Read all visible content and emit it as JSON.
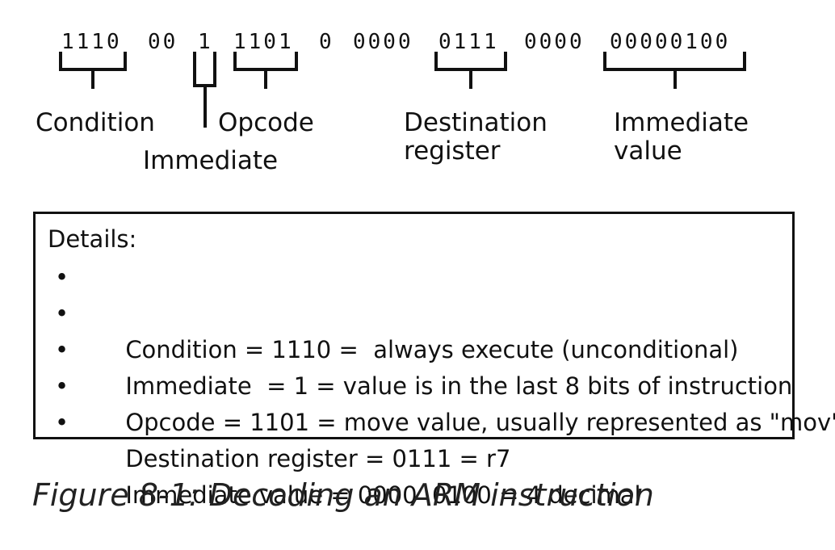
{
  "diagram": {
    "bit_groups": [
      "1110",
      "00",
      "1",
      "1101",
      "0",
      "0000",
      "0111",
      "0000",
      "00000100"
    ],
    "field_labels": {
      "condition": "Condition",
      "immediate": "Immediate",
      "opcode": "Opcode",
      "destination": "Destination\nregister",
      "immediate_value": "Immediate\nvalue"
    }
  },
  "details": {
    "heading": "Details:",
    "items": [
      "Condition = 1110 =  always execute (unconditional)",
      "Immediate  = 1 = value is in the last 8 bits of instruction",
      "Opcode = 1101 = move value, usually represented as \"mov\"",
      "Destination register = 0111 = r7",
      "Immediate value = 0000  0100 = 4 decimal"
    ]
  },
  "caption": "Figure 8-1: Decoding an ARM instruction"
}
